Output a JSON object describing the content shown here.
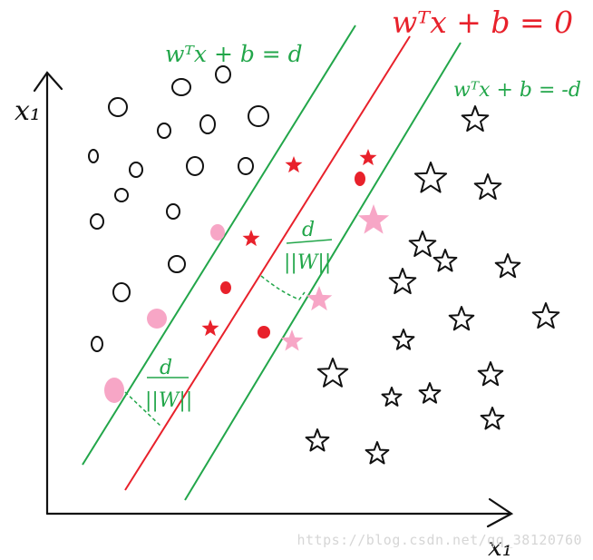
{
  "labels": {
    "hyperplane": "wᵀx + b = 0",
    "upper_margin": "wᵀx + b = d",
    "lower_margin": "wᵀx + b = -d",
    "margin_numerator": "d",
    "margin_denominator": "||W||",
    "axis_x": "x₁",
    "axis_y": "x₁"
  },
  "watermark": "https://blog.csdn.net/qq_38120760",
  "colors": {
    "ink": "#111111",
    "hyperplane": "#e8212b",
    "margin": "#22a64a",
    "support_vector": "#f7a6c6",
    "misclassified": "#e8212b"
  },
  "icons": {
    "class_a": "circle-outline",
    "class_b": "star-outline",
    "support_vector": "pink-filled",
    "inside_margin": "red-filled"
  }
}
